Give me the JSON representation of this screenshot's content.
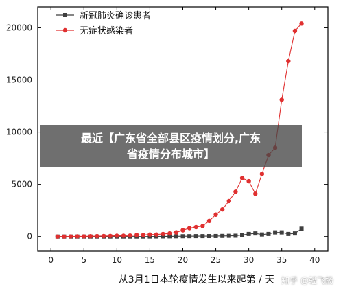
{
  "chart_data": {
    "type": "line",
    "title": "",
    "xlabel": "从3月1日本轮疫情发生以来起第 / 天",
    "ylabel": "",
    "xlim": [
      -2,
      42
    ],
    "ylim": [
      -1400,
      22000
    ],
    "xticks": [
      0,
      5,
      10,
      15,
      20,
      25,
      30,
      35,
      40
    ],
    "yticks": [
      0,
      5000,
      10000,
      15000,
      20000
    ],
    "grid": false,
    "legend_position": "top-left",
    "x": [
      1,
      2,
      3,
      4,
      5,
      6,
      7,
      8,
      9,
      10,
      11,
      12,
      13,
      14,
      15,
      16,
      17,
      18,
      19,
      20,
      21,
      22,
      23,
      24,
      25,
      26,
      27,
      28,
      29,
      30,
      31,
      32,
      33,
      34,
      35,
      36,
      37,
      38
    ],
    "series": [
      {
        "name": "新冠肺炎确诊患者",
        "color": "#3f3f3f",
        "marker": "square",
        "values": [
          0,
          0,
          0,
          0,
          0,
          0,
          0,
          0,
          0,
          0,
          0,
          0,
          0,
          0,
          5,
          10,
          15,
          20,
          25,
          30,
          35,
          40,
          40,
          45,
          50,
          60,
          70,
          80,
          150,
          250,
          300,
          200,
          250,
          400,
          400,
          250,
          300,
          750
        ]
      },
      {
        "name": "无症状感染者",
        "color": "#e03030",
        "marker": "circle",
        "values": [
          0,
          0,
          10,
          20,
          20,
          30,
          40,
          50,
          60,
          80,
          80,
          100,
          150,
          150,
          200,
          200,
          250,
          300,
          400,
          600,
          800,
          900,
          1000,
          1500,
          2100,
          2600,
          3400,
          4300,
          5600,
          5300,
          4100,
          6000,
          7800,
          8500,
          13100,
          16800,
          19700,
          20400
        ]
      }
    ]
  },
  "overlay": {
    "line1": "最近【广东省全部县区疫情划分,广东",
    "line2": "省疫情分布城市】"
  },
  "watermark": "知乎 @轻飞扬"
}
